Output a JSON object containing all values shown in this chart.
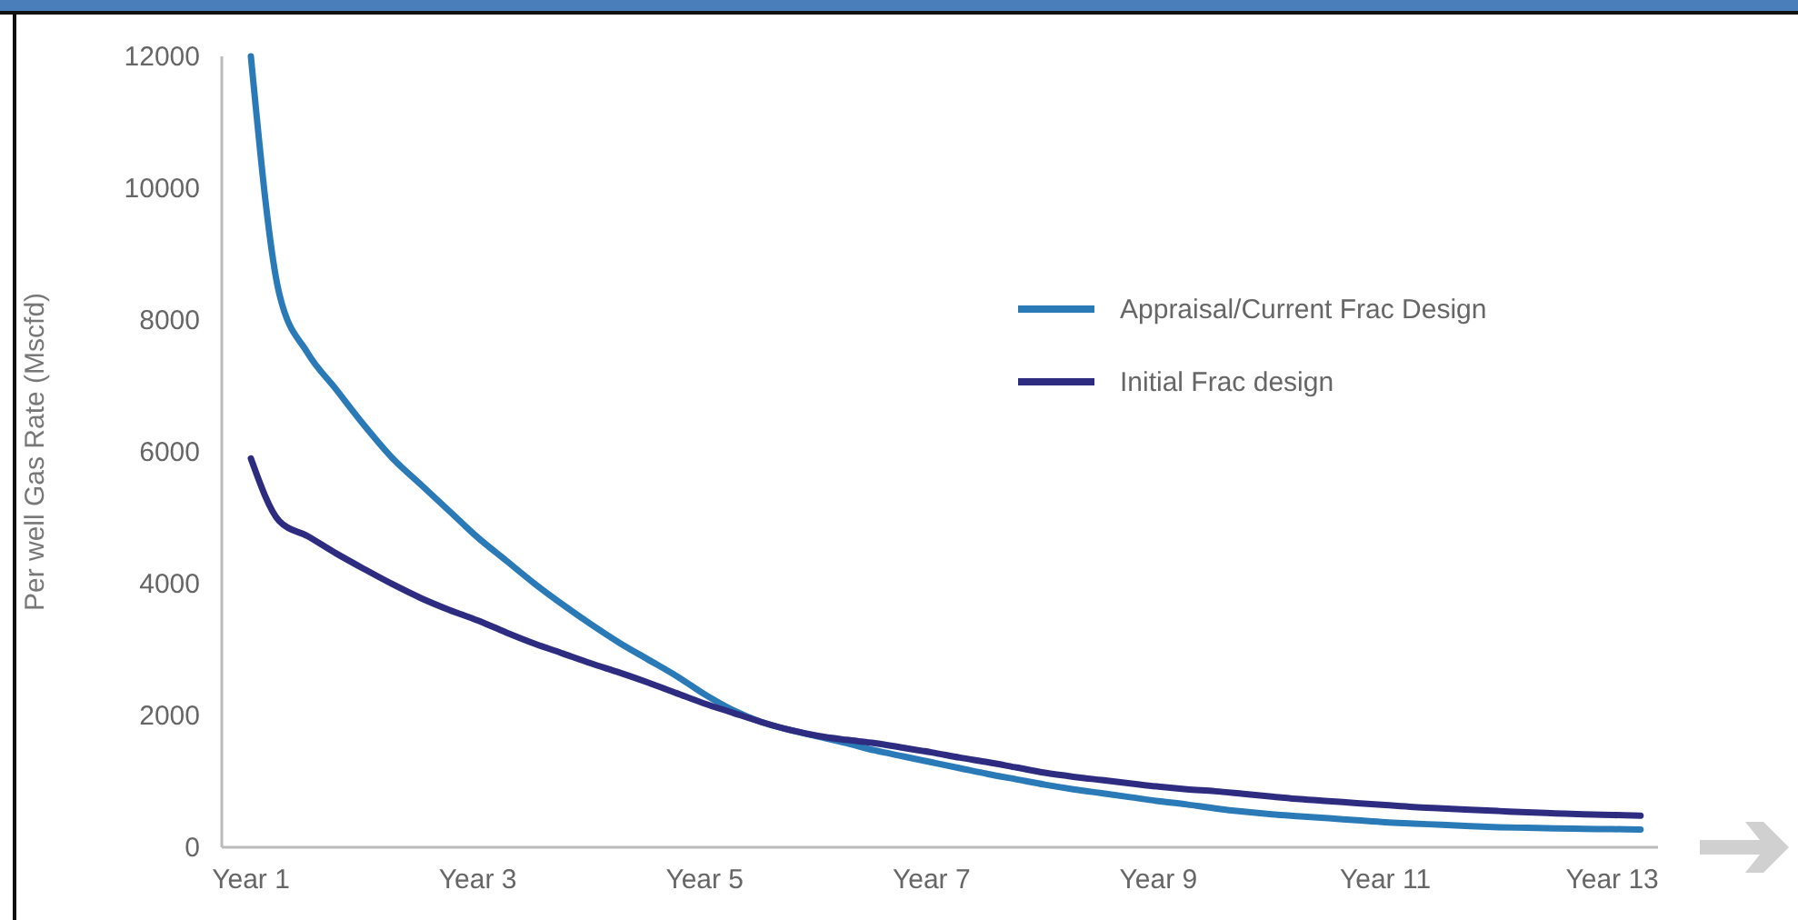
{
  "chart_data": {
    "type": "line",
    "ylabel": "Per well Gas Rate (Mscfd)",
    "categories": [
      "Year 1",
      null,
      null,
      null,
      null,
      null,
      null,
      null,
      "Year 3",
      null,
      null,
      null,
      null,
      null,
      null,
      null,
      "Year 5",
      null,
      null,
      null,
      null,
      null,
      null,
      null,
      "Year 7",
      null,
      null,
      null,
      null,
      null,
      null,
      null,
      "Year 9",
      null,
      null,
      null,
      null,
      null,
      null,
      null,
      "Year 11",
      null,
      null,
      null,
      null,
      null,
      null,
      null,
      "Year 13",
      null
    ],
    "ylim": [
      0,
      12000
    ],
    "yticks": [
      0,
      2000,
      4000,
      6000,
      8000,
      10000,
      12000
    ],
    "grid": false,
    "legend": "top right",
    "marker": "none",
    "line_style": "solid",
    "series": [
      {
        "name": "Appraisal/Current Frac Design",
        "color": "#2a7ab8",
        "values": [
          12000,
          8400,
          7500,
          6950,
          6400,
          5900,
          5500,
          5100,
          4700,
          4350,
          4000,
          3680,
          3380,
          3100,
          2850,
          2600,
          2320,
          2080,
          1900,
          1780,
          1680,
          1580,
          1470,
          1380,
          1290,
          1200,
          1110,
          1030,
          950,
          880,
          820,
          760,
          700,
          650,
          590,
          540,
          500,
          470,
          440,
          410,
          380,
          360,
          340,
          320,
          305,
          295,
          285,
          280,
          275,
          270
        ]
      },
      {
        "name": "Initial Frac design",
        "color": "#2e2c80",
        "values": [
          5900,
          4950,
          4720,
          4460,
          4220,
          3990,
          3780,
          3600,
          3440,
          3260,
          3090,
          2940,
          2790,
          2650,
          2500,
          2340,
          2180,
          2040,
          1900,
          1780,
          1690,
          1630,
          1580,
          1510,
          1440,
          1360,
          1290,
          1210,
          1130,
          1070,
          1020,
          970,
          920,
          880,
          850,
          810,
          770,
          730,
          700,
          670,
          640,
          610,
          590,
          570,
          550,
          530,
          515,
          500,
          490,
          480
        ]
      }
    ]
  }
}
